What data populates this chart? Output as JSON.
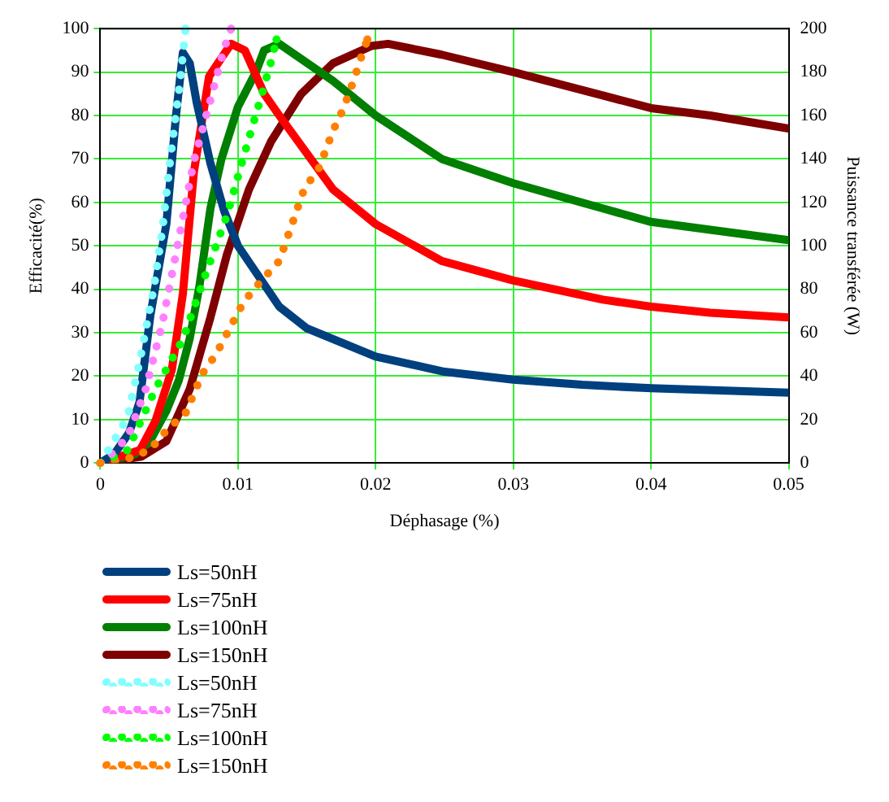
{
  "chart_data": {
    "type": "line",
    "xlabel": "Déphasage (%)",
    "ylabel": "Efficacité(%)",
    "y2label": "Puissance transférée (W)",
    "xlim": [
      0,
      0.05
    ],
    "xticks": [
      0,
      0.01,
      0.02,
      0.03,
      0.04,
      0.05
    ],
    "ylim": [
      0,
      100
    ],
    "yticks": [
      0,
      10,
      20,
      30,
      40,
      50,
      60,
      70,
      80,
      90,
      100
    ],
    "y2lim": [
      0,
      200
    ],
    "y2ticks": [
      0,
      20,
      40,
      60,
      80,
      100,
      120,
      140,
      160,
      180,
      200
    ],
    "grid": true,
    "legend": "bottom left",
    "marker": "none",
    "series": [
      {
        "name": "Ls=50nH",
        "color": "#00407f",
        "line_style": "solid",
        "x": [
          0,
          0.001,
          0.0021,
          0.00285,
          0.00364,
          0.0048,
          0.0055,
          0.006,
          0.0065,
          0.007,
          0.008,
          0.009,
          0.01,
          0.013,
          0.015,
          0.02,
          0.025,
          0.03,
          0.035,
          0.04,
          0.045,
          0.05
        ],
        "values": [
          0,
          2,
          7,
          14,
          34,
          55,
          80,
          94.5,
          92,
          83,
          69,
          58,
          50,
          36,
          31,
          24.5,
          21,
          19.2,
          18,
          17.2,
          16.7,
          16.2
        ]
      },
      {
        "name": "Ls=75nH",
        "color": "#ff0000",
        "line_style": "solid",
        "x": [
          0,
          0.0029,
          0.004,
          0.0052,
          0.006,
          0.0068,
          0.0079,
          0.0095,
          0.0105,
          0.0119,
          0.013,
          0.0169,
          0.02,
          0.0248,
          0.03,
          0.0365,
          0.04,
          0.0443,
          0.05
        ],
        "values": [
          0,
          3,
          9.6,
          21.5,
          39,
          67,
          89,
          96.5,
          95,
          85,
          80,
          63,
          55,
          46.5,
          42,
          37.6,
          36,
          34.6,
          33.5
        ]
      },
      {
        "name": "Ls=100nH",
        "color": "#007f00",
        "line_style": "solid",
        "x": [
          0,
          0.0025,
          0.0036,
          0.0048,
          0.0057,
          0.0065,
          0.0072,
          0.008,
          0.0088,
          0.01,
          0.0113,
          0.0119,
          0.013,
          0.0169,
          0.02,
          0.0248,
          0.03,
          0.0365,
          0.04,
          0.0443,
          0.05
        ],
        "values": [
          0,
          2,
          5,
          12,
          19,
          28.7,
          40.7,
          58.6,
          70,
          82,
          90,
          95,
          96.5,
          88,
          80,
          70,
          64.4,
          58.6,
          55.5,
          53.7,
          51.3
        ]
      },
      {
        "name": "Ls=150nH",
        "color": "#7f0000",
        "line_style": "solid",
        "x": [
          0,
          0.003,
          0.0048,
          0.0065,
          0.008,
          0.0092,
          0.0108,
          0.0124,
          0.0146,
          0.0169,
          0.0197,
          0.0209,
          0.0248,
          0.03,
          0.0365,
          0.04,
          0.0443,
          0.05
        ],
        "values": [
          0,
          1.5,
          5,
          17,
          33.5,
          48,
          63,
          74,
          85,
          92,
          96,
          96.5,
          94,
          90,
          84.6,
          81.7,
          80,
          77
        ]
      },
      {
        "name": "Ls=50nH",
        "color": "#80ffff",
        "line_style": "dotted",
        "axis": "y2",
        "x": [
          0,
          0.0005,
          0.0014,
          0.002,
          0.0029,
          0.0039,
          0.0045,
          0.0052,
          0.0058,
          0.0062
        ],
        "values": [
          0,
          5,
          14.6,
          21.6,
          48,
          81,
          107,
          146,
          176,
          200
        ]
      },
      {
        "name": "Ls=75nH",
        "color": "#ff80ff",
        "line_style": "dotted",
        "axis": "y2",
        "x": [
          0,
          0.0005,
          0.002,
          0.0033,
          0.0045,
          0.0057,
          0.0068,
          0.008,
          0.009,
          0.0095
        ],
        "values": [
          0,
          2,
          12,
          34,
          64,
          103,
          139,
          167,
          191,
          200
        ]
      },
      {
        "name": "Ls=100nH",
        "color": "#00ff00",
        "line_style": "dotted",
        "axis": "y2",
        "x": [
          0,
          0.002,
          0.004,
          0.006,
          0.0076,
          0.0092,
          0.0105,
          0.0117,
          0.0125,
          0.0128
        ],
        "values": [
          0,
          6,
          34,
          57,
          86,
          114,
          143,
          169,
          187,
          195
        ]
      },
      {
        "name": "Ls=150nH",
        "color": "#ff8000",
        "line_style": "dotted",
        "axis": "y2",
        "x": [
          0,
          0.002,
          0.0036,
          0.0048,
          0.0062,
          0.0074,
          0.0084,
          0.0094,
          0.0104,
          0.0117,
          0.013,
          0.0148,
          0.0159,
          0.0169,
          0.0175,
          0.018,
          0.0185,
          0.0189,
          0.0194
        ],
        "values": [
          0,
          2,
          6,
          15,
          23,
          41,
          50,
          62,
          74,
          84,
          93,
          126,
          136,
          153,
          161,
          169,
          178,
          186,
          195
        ]
      }
    ]
  }
}
